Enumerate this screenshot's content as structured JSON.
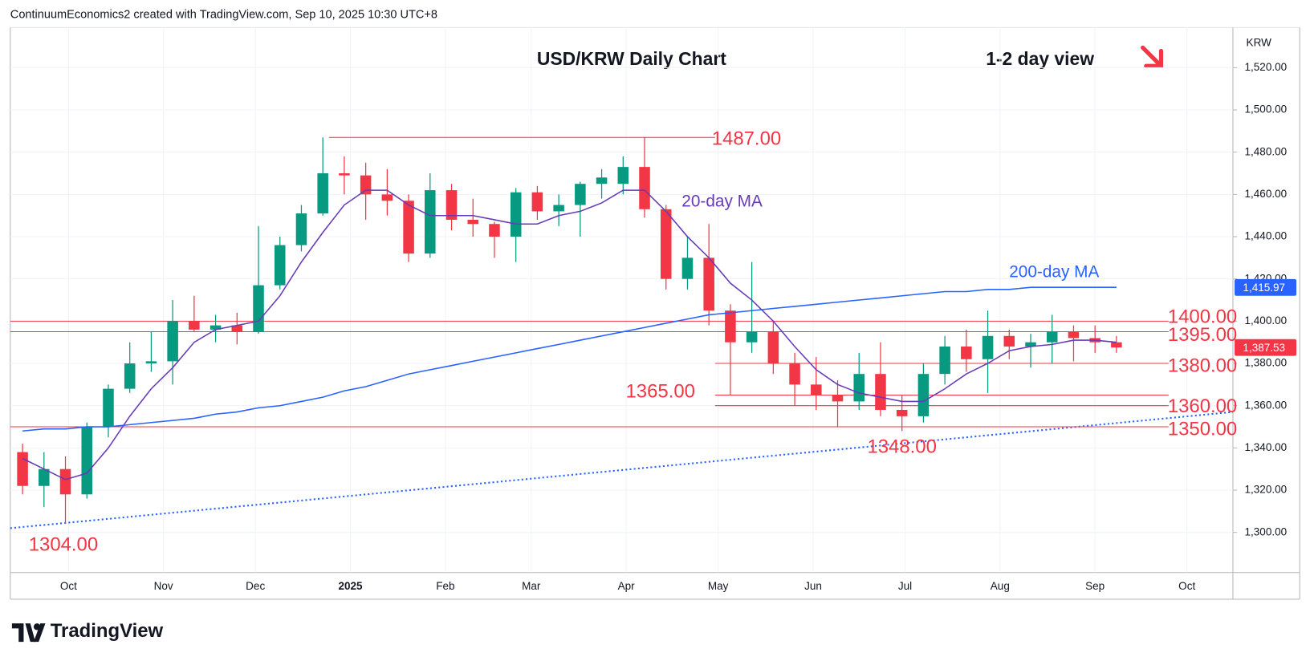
{
  "chart_data": {
    "type": "candlestick",
    "header": "ContinuumEconomics2 created with TradingView.com, Sep 10, 2025 10:30 UTC+8",
    "title": "USD/KRW Daily Chart",
    "subtitle": "1-2 day view",
    "currency": "KRW",
    "brand": "TradingView",
    "up_color": "#089981",
    "down_color": "#f23645",
    "xlim": [
      "2024-09-12",
      "2025-10-16"
    ],
    "xticks": [
      {
        "value": "2024-10-01",
        "label": "Oct"
      },
      {
        "value": "2024-11-01",
        "label": "Nov"
      },
      {
        "value": "2024-12-01",
        "label": "Dec"
      },
      {
        "value": "2025-01-01",
        "label": "2025"
      },
      {
        "value": "2025-02-01",
        "label": "Feb"
      },
      {
        "value": "2025-03-01",
        "label": "Mar"
      },
      {
        "value": "2025-04-01",
        "label": "Apr"
      },
      {
        "value": "2025-05-01",
        "label": "May"
      },
      {
        "value": "2025-06-01",
        "label": "Jun"
      },
      {
        "value": "2025-07-01",
        "label": "Jul"
      },
      {
        "value": "2025-08-01",
        "label": "Aug"
      },
      {
        "value": "2025-09-01",
        "label": "Sep"
      },
      {
        "value": "2025-10-01",
        "label": "Oct"
      }
    ],
    "ylim": [
      1281,
      1539
    ],
    "yticks": [
      {
        "value": 1300,
        "label": "1,300.00"
      },
      {
        "value": 1320,
        "label": "1,320.00"
      },
      {
        "value": 1340,
        "label": "1,340.00"
      },
      {
        "value": 1360,
        "label": "1,360.00"
      },
      {
        "value": 1380,
        "label": "1,380.00"
      },
      {
        "value": 1400,
        "label": "1,400.00"
      },
      {
        "value": 1420,
        "label": "1,420.00"
      },
      {
        "value": 1440,
        "label": "1,440.00"
      },
      {
        "value": 1460,
        "label": "1,460.00"
      },
      {
        "value": 1480,
        "label": "1,480.00"
      },
      {
        "value": 1500,
        "label": "1,500.00"
      },
      {
        "value": 1520,
        "label": "1,520.00"
      }
    ],
    "grid": true,
    "x": [
      "2024-09-16",
      "2024-09-23",
      "2024-09-30",
      "2024-10-07",
      "2024-10-14",
      "2024-10-21",
      "2024-10-28",
      "2024-11-04",
      "2024-11-11",
      "2024-11-18",
      "2024-11-25",
      "2024-12-02",
      "2024-12-09",
      "2024-12-16",
      "2024-12-23",
      "2024-12-30",
      "2025-01-06",
      "2025-01-13",
      "2025-01-20",
      "2025-01-27",
      "2025-02-03",
      "2025-02-10",
      "2025-02-17",
      "2025-02-24",
      "2025-03-03",
      "2025-03-10",
      "2025-03-17",
      "2025-03-24",
      "2025-03-31",
      "2025-04-07",
      "2025-04-14",
      "2025-04-21",
      "2025-04-28",
      "2025-05-05",
      "2025-05-12",
      "2025-05-19",
      "2025-05-26",
      "2025-06-02",
      "2025-06-09",
      "2025-06-16",
      "2025-06-23",
      "2025-06-30",
      "2025-07-07",
      "2025-07-14",
      "2025-07-21",
      "2025-07-28",
      "2025-08-04",
      "2025-08-11",
      "2025-08-18",
      "2025-08-25",
      "2025-09-01",
      "2025-09-08"
    ],
    "open": [
      1338,
      1322,
      1330,
      1318,
      1350,
      1368,
      1380,
      1381,
      1400,
      1396,
      1398,
      1395,
      1417,
      1436,
      1451,
      1470,
      1469,
      1460,
      1457,
      1432,
      1462,
      1448,
      1446,
      1440,
      1461,
      1452,
      1455,
      1465,
      1465,
      1473,
      1453,
      1420,
      1430,
      1405,
      1390,
      1395,
      1380,
      1370,
      1365,
      1362,
      1375,
      1358,
      1355,
      1375,
      1388,
      1382,
      1393,
      1388,
      1390,
      1395,
      1392,
      1390
    ],
    "high": [
      1342,
      1338,
      1336,
      1352,
      1370,
      1390,
      1395,
      1410,
      1412,
      1403,
      1404,
      1445,
      1440,
      1455,
      1487,
      1478,
      1475,
      1472,
      1460,
      1470,
      1465,
      1458,
      1447,
      1463,
      1464,
      1460,
      1466,
      1472,
      1478,
      1487,
      1455,
      1440,
      1446,
      1408,
      1428,
      1400,
      1385,
      1383,
      1372,
      1385,
      1390,
      1365,
      1380,
      1393,
      1396,
      1405,
      1396,
      1394,
      1403,
      1398,
      1398,
      1393
    ],
    "low": [
      1318,
      1312,
      1304,
      1316,
      1345,
      1366,
      1376,
      1370,
      1395,
      1390,
      1389,
      1394,
      1415,
      1433,
      1450,
      1460,
      1448,
      1450,
      1428,
      1430,
      1443,
      1440,
      1430,
      1428,
      1448,
      1445,
      1440,
      1458,
      1460,
      1449,
      1415,
      1415,
      1398,
      1365,
      1385,
      1375,
      1360,
      1358,
      1350,
      1358,
      1355,
      1348,
      1352,
      1370,
      1376,
      1366,
      1382,
      1378,
      1380,
      1381,
      1385,
      1385
    ],
    "close": [
      1322,
      1330,
      1318,
      1350,
      1368,
      1380,
      1381,
      1400,
      1396,
      1398,
      1395,
      1417,
      1436,
      1451,
      1470,
      1469,
      1460,
      1457,
      1432,
      1462,
      1448,
      1446,
      1440,
      1461,
      1452,
      1455,
      1465,
      1468,
      1473,
      1453,
      1420,
      1430,
      1405,
      1390,
      1395,
      1380,
      1370,
      1365,
      1362,
      1375,
      1358,
      1355,
      1375,
      1388,
      1382,
      1393,
      1388,
      1390,
      1395,
      1392,
      1390,
      1387.53
    ],
    "series": [
      {
        "name": "20-day MA",
        "color": "#673ab7",
        "values": [
          1335,
          1330,
          1325,
          1328,
          1340,
          1355,
          1368,
          1378,
          1390,
          1396,
          1398,
          1400,
          1412,
          1428,
          1442,
          1455,
          1462,
          1462,
          1455,
          1450,
          1450,
          1450,
          1448,
          1446,
          1446,
          1450,
          1452,
          1456,
          1462,
          1462,
          1452,
          1440,
          1430,
          1418,
          1410,
          1400,
          1388,
          1377,
          1370,
          1366,
          1364,
          1362,
          1362,
          1368,
          1375,
          1380,
          1386,
          1388,
          1389,
          1391,
          1391,
          1390
        ]
      },
      {
        "name": "200-day MA",
        "color": "#2962ff",
        "values": [
          1348,
          1349,
          1349,
          1350,
          1350,
          1351,
          1352,
          1353,
          1354,
          1356,
          1357,
          1359,
          1360,
          1362,
          1364,
          1367,
          1369,
          1372,
          1375,
          1377,
          1379,
          1381,
          1383,
          1385,
          1387,
          1389,
          1391,
          1393,
          1395,
          1397,
          1399,
          1401,
          1403,
          1404,
          1405,
          1406,
          1407,
          1408,
          1409,
          1410,
          1411,
          1412,
          1413,
          1414,
          1414,
          1415,
          1415,
          1416,
          1416,
          1416,
          1416,
          1416
        ]
      }
    ],
    "trendline": {
      "x": [
        "2024-09-12",
        "2025-10-16"
      ],
      "values": [
        1302,
        1357
      ],
      "color": "#2962ff"
    },
    "levels": [
      {
        "value": 1487,
        "label": "1487.00",
        "start": "2024-12-25",
        "end": "2025-04-30"
      },
      {
        "value": 1400,
        "label": "1400.00",
        "start": "2024-09-12",
        "end": "2025-09-25"
      },
      {
        "value": 1395,
        "label": "1395.00",
        "start": "2024-09-12",
        "end": "2025-09-25"
      },
      {
        "value": 1380,
        "label": "1380.00",
        "start": "2025-04-30",
        "end": "2025-09-25"
      },
      {
        "value": 1365,
        "label": "1365.00",
        "start": "2025-04-30",
        "end": "2025-09-25"
      },
      {
        "value": 1360,
        "label": "1360.00",
        "start": "2025-04-30",
        "end": "2025-09-25"
      },
      {
        "value": 1350,
        "label": "1350.00",
        "start": "2024-09-12",
        "end": "2025-09-25"
      }
    ],
    "lows": [
      {
        "value": 1348,
        "label": "1348.00",
        "date": "2025-06-30"
      },
      {
        "value": 1304,
        "label": "1304.00",
        "date": "2024-09-30"
      }
    ],
    "price_badges": [
      {
        "value": 1415.97,
        "label": "1,415.97",
        "color": "#2962ff"
      },
      {
        "value": 1387.53,
        "label": "1,387.53",
        "color": "#f23645"
      }
    ]
  }
}
